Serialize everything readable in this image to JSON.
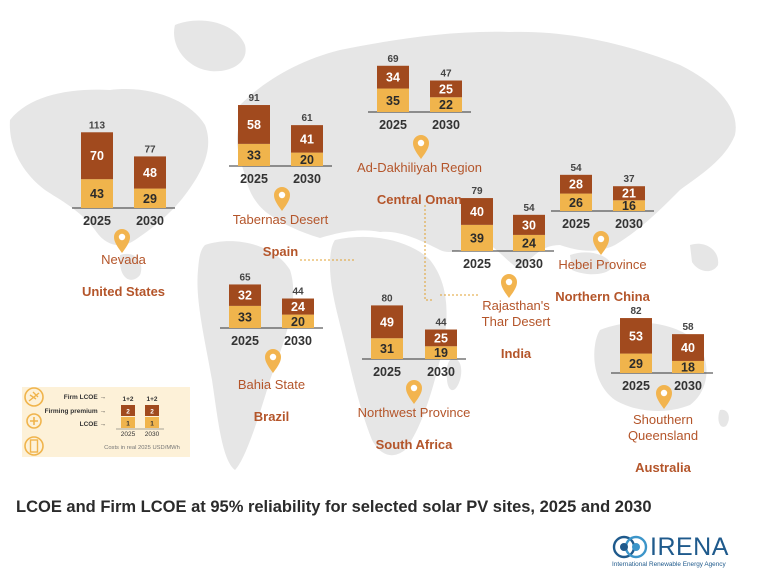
{
  "title": "LCOE and Firm LCOE at 95% reliability for selected solar PV sites, 2025 and 2030",
  "brand": {
    "name": "IRENA",
    "subtitle": "International Renewable Energy Agency"
  },
  "colors": {
    "lcoe": "#f0b44c",
    "premium": "#a14a1e",
    "region": "#b4552a",
    "pin": "#f2b44f",
    "map": "#e6e6e6",
    "text": "#2b2b2b"
  },
  "legend": {
    "labels": [
      "Firm LCOE",
      "Firming premium",
      "LCOE"
    ],
    "values": [
      "1+2",
      "2",
      "1"
    ],
    "years": [
      "2025",
      "2030"
    ],
    "note": "Costs in real 2025 USD/MWh",
    "icons": [
      "solar-panel-icon",
      "plus-icon",
      "battery-icon"
    ]
  },
  "chart_data": {
    "type": "bar",
    "stacked": true,
    "unit": "USD/MWh",
    "years": [
      "2025",
      "2030"
    ],
    "series_names": [
      "LCOE",
      "Firming premium"
    ],
    "sites": [
      {
        "place": "Nevada",
        "region": "United States",
        "lcoe": [
          43,
          29
        ],
        "premium": [
          70,
          48
        ],
        "firm": [
          113,
          77
        ]
      },
      {
        "place": "Tabernas Desert",
        "region": "Spain",
        "lcoe": [
          33,
          20
        ],
        "premium": [
          58,
          41
        ],
        "firm": [
          91,
          61
        ]
      },
      {
        "place": "Ad-Dakhiliyah Region",
        "region": "Central Oman",
        "lcoe": [
          35,
          22
        ],
        "premium": [
          34,
          25
        ],
        "firm": [
          69,
          47
        ]
      },
      {
        "place": "Rajasthan's Thar Desert",
        "region": "India",
        "lcoe": [
          39,
          24
        ],
        "premium": [
          40,
          30
        ],
        "firm": [
          79,
          54
        ]
      },
      {
        "place": "Hebei Province",
        "region": "Northern China",
        "lcoe": [
          26,
          16
        ],
        "premium": [
          28,
          21
        ],
        "firm": [
          54,
          37
        ]
      },
      {
        "place": "Bahia State",
        "region": "Brazil",
        "lcoe": [
          33,
          20
        ],
        "premium": [
          32,
          24
        ],
        "firm": [
          65,
          44
        ]
      },
      {
        "place": "Northwest Province",
        "region": "South Africa",
        "lcoe": [
          31,
          19
        ],
        "premium": [
          49,
          25
        ],
        "firm": [
          80,
          44
        ]
      },
      {
        "place": "Shouthern Queensland",
        "region": "Australia",
        "lcoe": [
          29,
          18
        ],
        "premium": [
          53,
          40
        ],
        "firm": [
          82,
          58
        ]
      }
    ]
  }
}
